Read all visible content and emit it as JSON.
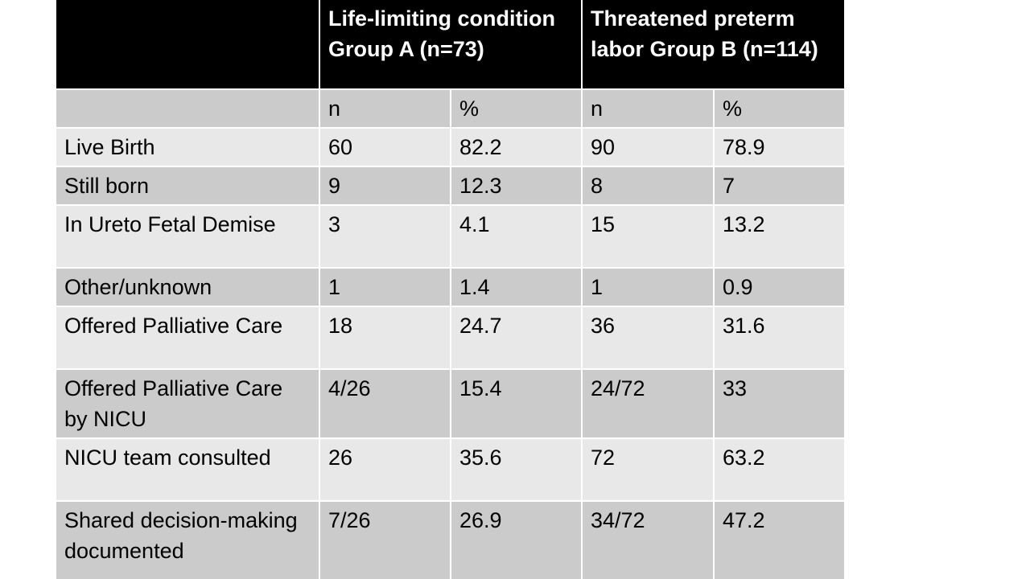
{
  "table": {
    "header": {
      "group_a": "Life-limiting condition Group A (n=73)",
      "group_b": "Threatened preterm labor Group B (n=114)"
    },
    "subheader": [
      "n",
      "%",
      "n",
      "%"
    ],
    "rows": [
      {
        "label": "Live Birth",
        "a_n": "60",
        "a_pct": "82.2",
        "b_n": "90",
        "b_pct": "78.9"
      },
      {
        "label": "Still born",
        "a_n": "9",
        "a_pct": "12.3",
        "b_n": "8",
        "b_pct": "7"
      },
      {
        "label": "In Ureto Fetal Demise",
        "a_n": "3",
        "a_pct": "4.1",
        "b_n": "15",
        "b_pct": "13.2"
      },
      {
        "label": "Other/unknown",
        "a_n": "1",
        "a_pct": "1.4",
        "b_n": "1",
        "b_pct": "0.9"
      },
      {
        "label": "Offered Palliative Care",
        "a_n": "18",
        "a_pct": "24.7",
        "b_n": "36",
        "b_pct": "31.6"
      },
      {
        "label": "Offered Palliative Care by NICU",
        "a_n": "4/26",
        "a_pct": "15.4",
        "b_n": "24/72",
        "b_pct": "33"
      },
      {
        "label": "NICU team consulted",
        "a_n": "26",
        "a_pct": "35.6",
        "b_n": "72",
        "b_pct": "63.2"
      },
      {
        "label": "Shared decision-making documented",
        "a_n": "7/26",
        "a_pct": "26.9",
        "b_n": "34/72",
        "b_pct": "47.2"
      }
    ]
  }
}
